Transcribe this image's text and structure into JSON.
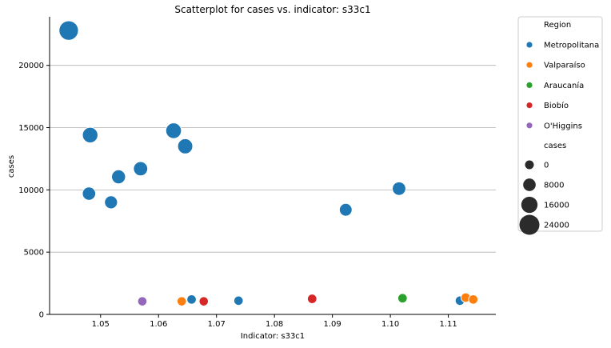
{
  "chart_data": {
    "type": "scatter",
    "title": "Scatterplot for cases vs. indicator: s33c1",
    "xlabel": "Indicator: s33c1",
    "ylabel": "cases",
    "xlim": [
      1.0412,
      1.1182
    ],
    "ylim": [
      0,
      23900
    ],
    "xticks": [
      1.05,
      1.06,
      1.07,
      1.08,
      1.09,
      1.1,
      1.11
    ],
    "xtick_labels": [
      "1.05",
      "1.06",
      "1.07",
      "1.08",
      "1.09",
      "1.10",
      "1.11"
    ],
    "yticks": [
      0,
      5000,
      10000,
      15000,
      20000
    ],
    "ytick_labels": [
      "0",
      "5000",
      "10000",
      "15000",
      "20000"
    ],
    "grid": "y",
    "legend_placement": "outside-right",
    "hue_title": "Region",
    "size_title": "cases",
    "size_legend": [
      {
        "label": "0",
        "value": 0
      },
      {
        "label": "8000",
        "value": 8000
      },
      {
        "label": "16000",
        "value": 16000
      },
      {
        "label": "24000",
        "value": 24000
      }
    ],
    "series": [
      {
        "name": "Metropolitana",
        "color": "#1f77b4",
        "points": [
          {
            "x": 1.0445,
            "y": 22800
          },
          {
            "x": 1.0482,
            "y": 14400
          },
          {
            "x": 1.048,
            "y": 9700
          },
          {
            "x": 1.0518,
            "y": 9000
          },
          {
            "x": 1.0531,
            "y": 11050
          },
          {
            "x": 1.0569,
            "y": 11700
          },
          {
            "x": 1.0626,
            "y": 14750
          },
          {
            "x": 1.0646,
            "y": 13500
          },
          {
            "x": 1.0923,
            "y": 8400
          },
          {
            "x": 1.1015,
            "y": 10100
          },
          {
            "x": 1.0657,
            "y": 1200
          },
          {
            "x": 1.0738,
            "y": 1100
          },
          {
            "x": 1.112,
            "y": 1100
          }
        ]
      },
      {
        "name": "Valparaíso",
        "color": "#ff7f0e",
        "points": [
          {
            "x": 1.064,
            "y": 1050
          },
          {
            "x": 1.113,
            "y": 1350
          },
          {
            "x": 1.1143,
            "y": 1200
          }
        ]
      },
      {
        "name": "Araucanía",
        "color": "#2ca02c",
        "points": [
          {
            "x": 1.1021,
            "y": 1300
          }
        ]
      },
      {
        "name": "Biobío",
        "color": "#d62728",
        "points": [
          {
            "x": 1.0678,
            "y": 1050
          },
          {
            "x": 1.0865,
            "y": 1250
          }
        ]
      },
      {
        "name": "O'Higgins",
        "color": "#9467bd",
        "points": [
          {
            "x": 1.0572,
            "y": 1050
          }
        ]
      }
    ]
  }
}
